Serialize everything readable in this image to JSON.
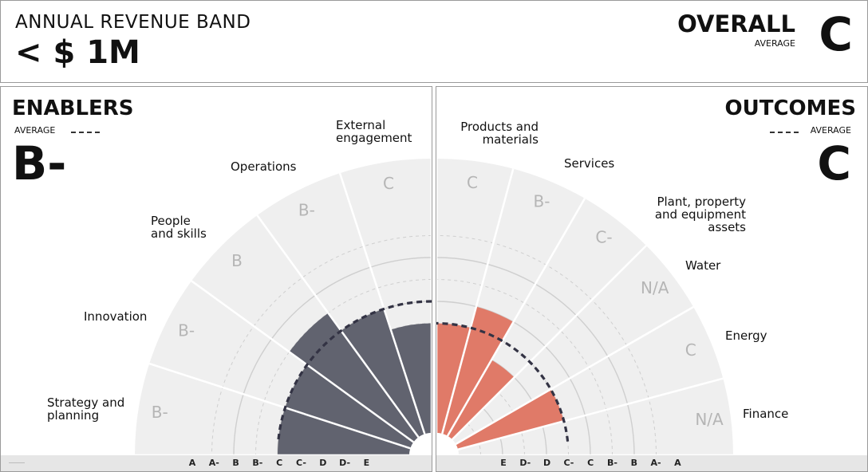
{
  "header": {
    "band_label": "ANNUAL REVENUE BAND",
    "band_value": "< $ 1M",
    "overall_title": "OVERALL",
    "overall_sub": "AVERAGE",
    "overall_grade": "C"
  },
  "enablers": {
    "title": "ENABLERS",
    "avg_label": "AVERAGE",
    "avg_grade": "B-"
  },
  "outcomes": {
    "title": "OUTCOMES",
    "avg_label": "AVERAGE",
    "avg_grade": "C"
  },
  "colors": {
    "enablers_bar": "#61636f",
    "outcomes_bar": "#e07a68",
    "track": "#efefef",
    "ring": "#cfcfcf",
    "average_line": "#333344"
  },
  "chart_data": [
    {
      "type": "radial-bar",
      "title": "ENABLERS",
      "grade_scale": [
        "E",
        "D-",
        "D",
        "C-",
        "C",
        "B-",
        "B",
        "A-",
        "A"
      ],
      "axis_labels": [
        "A",
        "A-",
        "B",
        "B-",
        "C",
        "C-",
        "D",
        "D-",
        "E"
      ],
      "categories": [
        "Strategy and\nplanning",
        "Innovation",
        "People\nand skills",
        "Operations",
        "External\nengagement"
      ],
      "grades": [
        "B-",
        "B-",
        "B",
        "B-",
        "C"
      ],
      "grade_labels": [
        "B-",
        "B-",
        "B",
        "B-",
        "C"
      ],
      "average": "B-"
    },
    {
      "type": "radial-bar",
      "title": "OUTCOMES",
      "grade_scale": [
        "E",
        "D-",
        "D",
        "C-",
        "C",
        "B-",
        "B",
        "A-",
        "A"
      ],
      "axis_labels": [
        "E",
        "D-",
        "D",
        "C-",
        "C",
        "B-",
        "B",
        "A-",
        "A"
      ],
      "categories": [
        "Products and\nmaterials",
        "Services",
        "Plant, property\nand equipment\nassets",
        "Water",
        "Energy",
        "Finance"
      ],
      "grades": [
        "C",
        "B-",
        "C-",
        null,
        "C",
        null
      ],
      "grade_labels": [
        "C",
        "B-",
        "C-",
        "N/A",
        "C",
        "N/A"
      ],
      "average": "C"
    }
  ]
}
